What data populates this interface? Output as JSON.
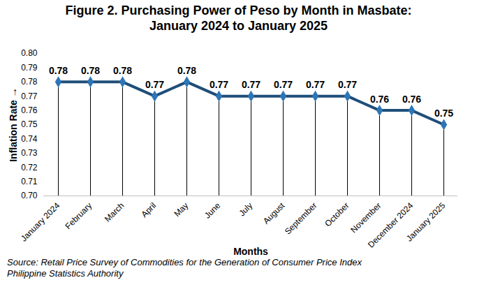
{
  "chart_data": {
    "type": "line",
    "title": "Figure 2. Purchasing Power of Peso by Month in Masbate: January 2024 to January 2025",
    "x_label": "Months",
    "y_label": "Inflation Rate",
    "source": "Source:  Retail Price Survey of Commodities for the Generation of Consumer Price Index\nPhilippine Statistics Authority",
    "categories": [
      "January 2024",
      "February",
      "March",
      "April",
      "May",
      "June",
      "July",
      "August",
      "September",
      "October",
      "November",
      "December 2024",
      "January 2025"
    ],
    "values": [
      0.78,
      0.78,
      0.78,
      0.77,
      0.78,
      0.77,
      0.77,
      0.77,
      0.77,
      0.77,
      0.76,
      0.76,
      0.75
    ],
    "color": "#1f4e79",
    "marker": "diamond",
    "data_labels": true,
    "grid": false,
    "ylim": [
      0.7,
      0.8
    ],
    "yticks": [
      {
        "value": 0.7,
        "label": "0.70"
      },
      0.71,
      0.72,
      0.73,
      0.74,
      0.75,
      0.76,
      0.77,
      0.78,
      0.79,
      {
        "value": 0.8,
        "label": "0.80"
      }
    ]
  }
}
